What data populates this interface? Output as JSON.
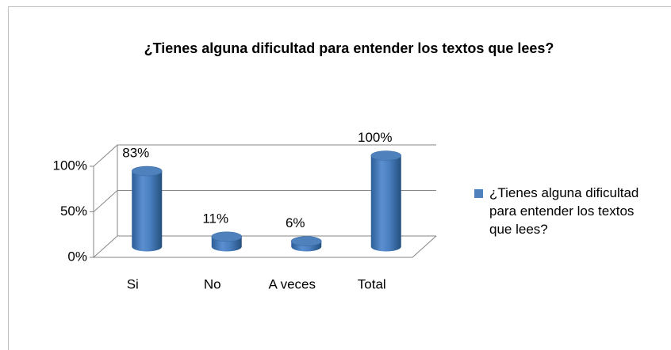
{
  "chart_data": {
    "type": "bar3d",
    "title": "¿Tienes alguna dificultad para entender los textos que lees?",
    "categories": [
      "Si",
      "No",
      "A veces",
      "Total"
    ],
    "series": [
      {
        "name": "¿Tienes alguna dificultad para entender los textos que lees?",
        "color": "#4f81bd",
        "values": [
          83,
          11,
          6,
          100
        ],
        "value_labels": [
          "83%",
          "11%",
          "6%",
          "100%"
        ]
      }
    ],
    "ylim": [
      0,
      100
    ],
    "yticks": [
      {
        "value": 0,
        "label": "0%"
      },
      {
        "value": 50,
        "label": "50%"
      },
      {
        "value": 100,
        "label": "100%"
      }
    ],
    "grid": true,
    "legend": "right"
  }
}
